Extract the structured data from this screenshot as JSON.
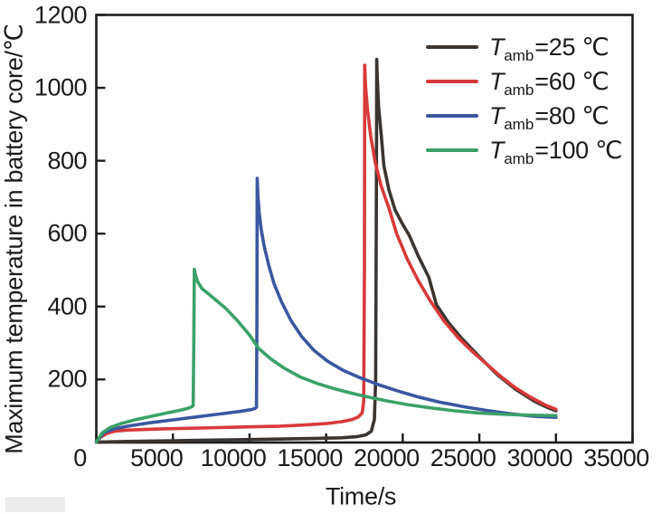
{
  "figure": {
    "background": "#fefefe",
    "axis_color": "#1c1c1c",
    "text_color": "#1b1b1b"
  },
  "chart_data": {
    "type": "line",
    "title": "",
    "xlabel": "Time/s",
    "ylabel": "Maximum temperature in battery core/℃",
    "xlim": [
      0,
      35000
    ],
    "ylim": [
      27,
      1200
    ],
    "grid": false,
    "legend_position": "inside top-right",
    "x_ticks": [
      0,
      5000,
      10000,
      15000,
      20000,
      25000,
      30000,
      35000
    ],
    "x_tick_labels": [
      "0",
      "5000",
      "10000",
      "15000",
      "20000",
      "25000",
      "30000",
      "35000"
    ],
    "y_ticks": [
      200,
      400,
      600,
      800,
      1000,
      1200
    ],
    "y_tick_labels": [
      "200",
      "400",
      "600",
      "800",
      "1000",
      "1200"
    ],
    "legend_entries": [
      {
        "symbol": "T",
        "subscript": "amb",
        "value": "=25 ℃",
        "color": "#3b3531"
      },
      {
        "symbol": "T",
        "subscript": "amb",
        "value": "=60 ℃",
        "color": "#d83a3a"
      },
      {
        "symbol": "T",
        "subscript": "amb",
        "value": "=80 ℃",
        "color": "#3a57a0"
      },
      {
        "symbol": "T",
        "subscript": "amb",
        "value": "=100 ℃",
        "color": "#3ca169"
      }
    ],
    "series": [
      {
        "name": "Tamb=25 ℃",
        "color": "#3b3531",
        "peak": {
          "time_s": 18300,
          "temp_c": 1078
        },
        "points": [
          [
            0,
            28
          ],
          [
            2000,
            30
          ],
          [
            5000,
            32
          ],
          [
            8000,
            34
          ],
          [
            11000,
            36
          ],
          [
            14000,
            38
          ],
          [
            16000,
            40
          ],
          [
            17000,
            43
          ],
          [
            17600,
            48
          ],
          [
            17950,
            58
          ],
          [
            18150,
            90
          ],
          [
            18230,
            200
          ],
          [
            18280,
            700
          ],
          [
            18300,
            1078
          ],
          [
            18340,
            1030
          ],
          [
            18420,
            950
          ],
          [
            18600,
            870
          ],
          [
            18770,
            786
          ],
          [
            19100,
            720
          ],
          [
            19500,
            665
          ],
          [
            20000,
            625
          ],
          [
            20430,
            595
          ],
          [
            21000,
            540
          ],
          [
            21700,
            480
          ],
          [
            22200,
            405
          ],
          [
            23000,
            355
          ],
          [
            23800,
            315
          ],
          [
            25000,
            262
          ],
          [
            26200,
            212
          ],
          [
            27400,
            172
          ],
          [
            28600,
            140
          ],
          [
            29500,
            122
          ],
          [
            30000,
            114
          ]
        ]
      },
      {
        "name": "Tamb=60 ℃",
        "color": "#d83a3a",
        "peak": {
          "time_s": 17520,
          "temp_c": 1062
        },
        "points": [
          [
            0,
            28
          ],
          [
            300,
            42
          ],
          [
            700,
            52
          ],
          [
            1200,
            58
          ],
          [
            2000,
            61
          ],
          [
            4000,
            64
          ],
          [
            6000,
            66
          ],
          [
            8000,
            68
          ],
          [
            10000,
            70
          ],
          [
            12000,
            72
          ],
          [
            13500,
            75
          ],
          [
            15000,
            79
          ],
          [
            16000,
            84
          ],
          [
            16700,
            90
          ],
          [
            17100,
            97
          ],
          [
            17350,
            108
          ],
          [
            17450,
            140
          ],
          [
            17500,
            500
          ],
          [
            17520,
            1062
          ],
          [
            17570,
            1005
          ],
          [
            17700,
            940
          ],
          [
            17900,
            870
          ],
          [
            18200,
            795
          ],
          [
            18600,
            730
          ],
          [
            19100,
            670
          ],
          [
            19600,
            600
          ],
          [
            20300,
            530
          ],
          [
            21000,
            472
          ],
          [
            21800,
            415
          ],
          [
            22700,
            360
          ],
          [
            23600,
            315
          ],
          [
            24500,
            278
          ],
          [
            25400,
            245
          ],
          [
            26400,
            208
          ],
          [
            27400,
            176
          ],
          [
            28400,
            150
          ],
          [
            29300,
            130
          ],
          [
            30000,
            118
          ]
        ]
      },
      {
        "name": "Tamb=80 ℃",
        "color": "#3a57a0",
        "peak": {
          "time_s": 10500,
          "temp_c": 752
        },
        "points": [
          [
            0,
            28
          ],
          [
            500,
            54
          ],
          [
            1200,
            65
          ],
          [
            2200,
            73
          ],
          [
            3500,
            81
          ],
          [
            5000,
            89
          ],
          [
            6500,
            97
          ],
          [
            8000,
            105
          ],
          [
            9300,
            112
          ],
          [
            10100,
            117
          ],
          [
            10350,
            120
          ],
          [
            10450,
            124
          ],
          [
            10480,
            350
          ],
          [
            10500,
            752
          ],
          [
            10545,
            705
          ],
          [
            10630,
            658
          ],
          [
            10760,
            612
          ],
          [
            10960,
            565
          ],
          [
            11260,
            512
          ],
          [
            11600,
            463
          ],
          [
            12100,
            412
          ],
          [
            12700,
            362
          ],
          [
            13400,
            318
          ],
          [
            14200,
            280
          ],
          [
            15100,
            250
          ],
          [
            16100,
            225
          ],
          [
            17200,
            205
          ],
          [
            18400,
            186
          ],
          [
            19700,
            168
          ],
          [
            21000,
            152
          ],
          [
            22500,
            137
          ],
          [
            24000,
            125
          ],
          [
            25500,
            115
          ],
          [
            27000,
            106
          ],
          [
            28500,
            99
          ],
          [
            30000,
            96
          ]
        ]
      },
      {
        "name": "Tamb=100 ℃",
        "color": "#3ca169",
        "peak": {
          "time_s": 6400,
          "temp_c": 502
        },
        "points": [
          [
            0,
            28
          ],
          [
            400,
            54
          ],
          [
            900,
            68
          ],
          [
            1600,
            79
          ],
          [
            2500,
            89
          ],
          [
            3500,
            98
          ],
          [
            4500,
            107
          ],
          [
            5400,
            115
          ],
          [
            6000,
            121
          ],
          [
            6220,
            125
          ],
          [
            6320,
            128
          ],
          [
            6360,
            300
          ],
          [
            6400,
            502
          ],
          [
            6460,
            488
          ],
          [
            6620,
            468
          ],
          [
            6900,
            449
          ],
          [
            7400,
            432
          ],
          [
            8400,
            397
          ],
          [
            9200,
            362
          ],
          [
            10000,
            322
          ],
          [
            10600,
            285
          ],
          [
            11400,
            256
          ],
          [
            12300,
            230
          ],
          [
            13300,
            207
          ],
          [
            14400,
            189
          ],
          [
            15500,
            175
          ],
          [
            16600,
            163
          ],
          [
            17700,
            152
          ],
          [
            19000,
            141
          ],
          [
            20300,
            131
          ],
          [
            21800,
            122
          ],
          [
            23400,
            114
          ],
          [
            25000,
            108
          ],
          [
            26800,
            104
          ],
          [
            28400,
            102
          ],
          [
            30000,
            101
          ]
        ]
      }
    ]
  }
}
